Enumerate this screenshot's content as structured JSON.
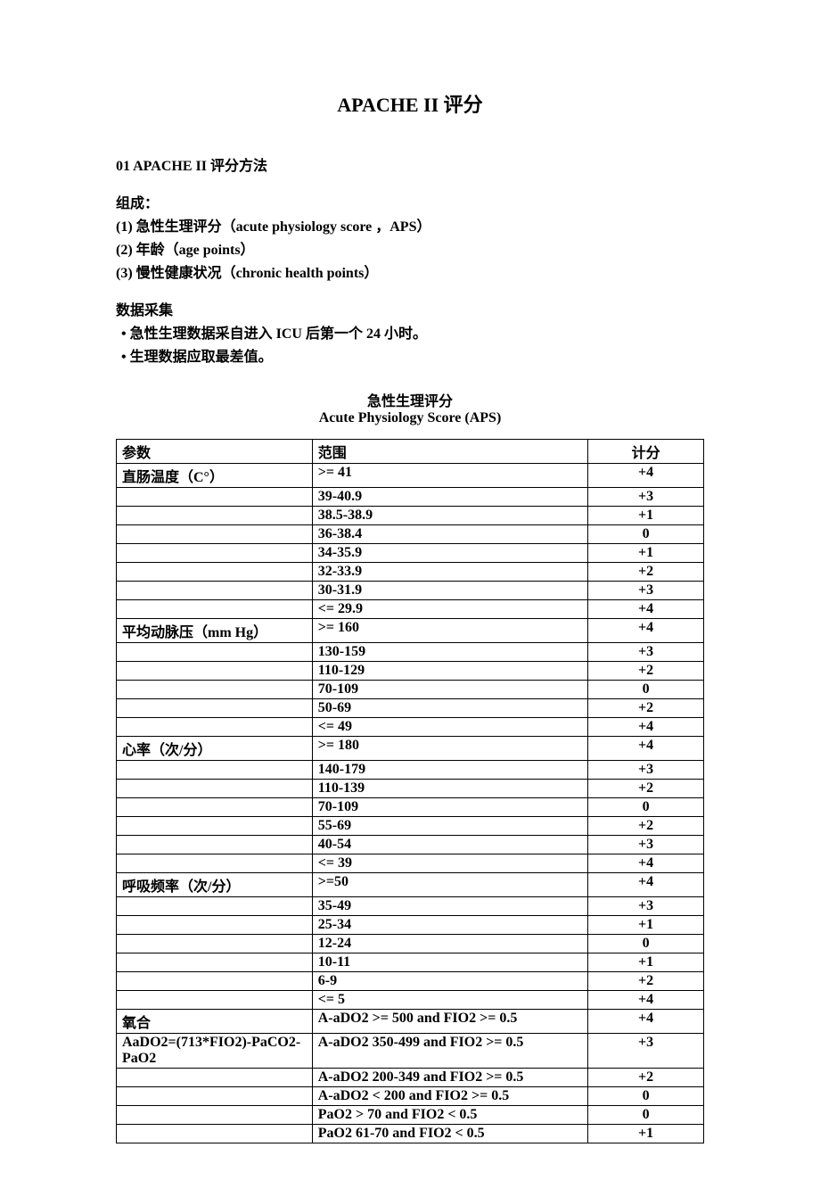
{
  "document": {
    "title": "APACHE II 评分",
    "section_title": "01 APACHE II 评分方法",
    "composition": {
      "label": "组成：",
      "items": [
        "(1) 急性生理评分（acute physiology score ，APS）",
        "(2) 年龄（age points）",
        "(3) 慢性健康状况（chronic health points）"
      ]
    },
    "data_collection": {
      "label": "数据采集",
      "items": [
        "急性生理数据采自进入 ICU 后第一个 24 小时。",
        "生理数据应取最差值。"
      ]
    },
    "table": {
      "title_cn": "急性生理评分",
      "title_en": "Acute Physiology Score (APS)",
      "headers": {
        "param": "参数",
        "range": "范围",
        "score": "计分"
      },
      "rows": [
        {
          "param": "直肠温度（C°）",
          "range": ">= 41",
          "score": "+4"
        },
        {
          "param": "",
          "range": "39-40.9",
          "score": "+3"
        },
        {
          "param": "",
          "range": "38.5-38.9",
          "score": "+1"
        },
        {
          "param": "",
          "range": "36-38.4",
          "score": "0"
        },
        {
          "param": "",
          "range": "34-35.9",
          "score": "+1"
        },
        {
          "param": "",
          "range": "32-33.9",
          "score": "+2"
        },
        {
          "param": "",
          "range": "30-31.9",
          "score": "+3"
        },
        {
          "param": "",
          "range": "<= 29.9",
          "score": "+4"
        },
        {
          "param": "平均动脉压（mm Hg）",
          "range": ">= 160",
          "score": "+4"
        },
        {
          "param": "",
          "range": "130-159",
          "score": "+3"
        },
        {
          "param": "",
          "range": "110-129",
          "score": "+2"
        },
        {
          "param": "",
          "range": "70-109",
          "score": "0"
        },
        {
          "param": "",
          "range": "50-69",
          "score": "+2"
        },
        {
          "param": "",
          "range": "<= 49",
          "score": "+4"
        },
        {
          "param": "心率（次/分）",
          "range": ">= 180",
          "score": "+4"
        },
        {
          "param": "",
          "range": "140-179",
          "score": "+3"
        },
        {
          "param": "",
          "range": "110-139",
          "score": "+2"
        },
        {
          "param": "",
          "range": "70-109",
          "score": "0"
        },
        {
          "param": "",
          "range": "55-69",
          "score": "+2"
        },
        {
          "param": "",
          "range": "40-54",
          "score": "+3"
        },
        {
          "param": "",
          "range": "<= 39",
          "score": "+4"
        },
        {
          "param": "呼吸频率（次/分）",
          "range": ">=50",
          "score": "+4"
        },
        {
          "param": "",
          "range": "35-49",
          "score": "+3"
        },
        {
          "param": "",
          "range": "25-34",
          "score": "+1"
        },
        {
          "param": "",
          "range": "12-24",
          "score": "0"
        },
        {
          "param": "",
          "range": "10-11",
          "score": "+1"
        },
        {
          "param": "",
          "range": "6-9",
          "score": "+2"
        },
        {
          "param": "",
          "range": "<= 5",
          "score": "+4"
        },
        {
          "param": "氧合",
          "range": "A-aDO2 >= 500 and FIO2 >= 0.5",
          "score": "+4"
        },
        {
          "param": "AaDO2=(713*FIO2)-PaCO2-PaO2",
          "range": "A-aDO2 350-499 and FIO2 >= 0.5",
          "score": "+3"
        },
        {
          "param": "",
          "range": "A-aDO2 200-349 and FIO2 >= 0.5",
          "score": "+2"
        },
        {
          "param": "",
          "range": "A-aDO2 < 200 and FIO2 >= 0.5",
          "score": "0"
        },
        {
          "param": "",
          "range": "PaO2 > 70 and FIO2 < 0.5",
          "score": "0"
        },
        {
          "param": "",
          "range": "PaO2 61-70 and FIO2 < 0.5",
          "score": "+1"
        }
      ]
    }
  },
  "styles": {
    "background_color": "#ffffff",
    "text_color": "#000000",
    "border_color": "#000000",
    "title_fontsize": 22,
    "body_fontsize": 16,
    "font_family": "Times New Roman, SimSun, serif"
  }
}
